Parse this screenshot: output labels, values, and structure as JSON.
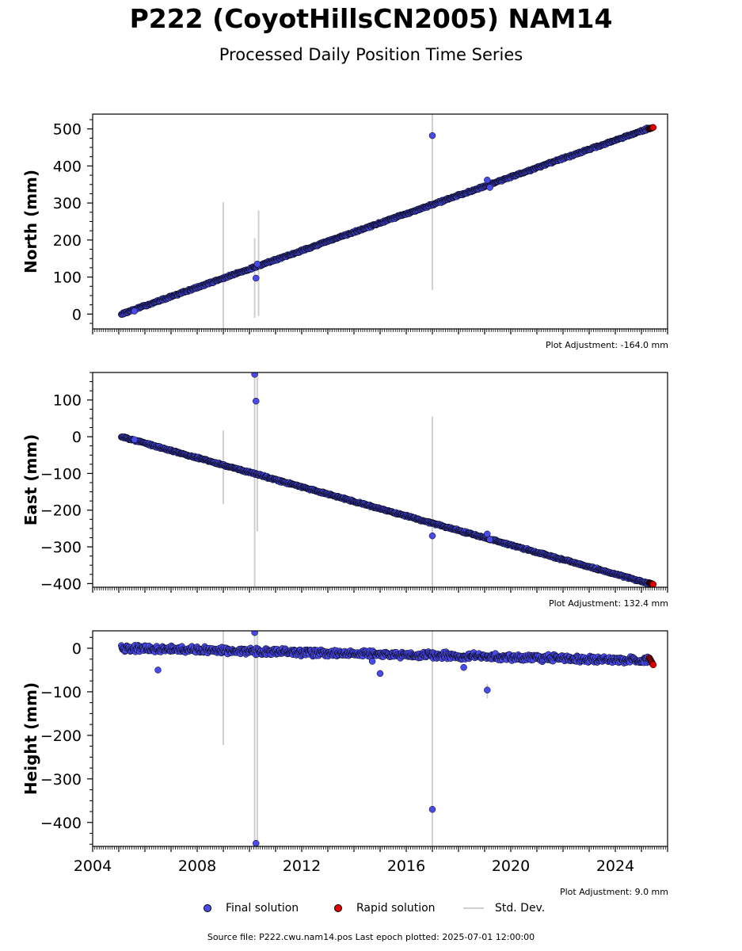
{
  "header": {
    "title": "P222 (CoyotHillsCN2005) NAM14",
    "subtitle": "Processed Daily Position Time Series"
  },
  "adjustments": {
    "north": "Plot Adjustment: -164.0 mm",
    "east": "Plot Adjustment: 132.4 mm",
    "height": "Plot Adjustment: 9.0 mm"
  },
  "legend": {
    "final": "Final solution",
    "rapid": "Rapid solution",
    "std": "Std. Dev."
  },
  "footer": "Source file: P222.cwu.nam14.pos  Last epoch plotted: 2025-07-01 12:00:00",
  "colors": {
    "final": "#4a4ae8",
    "rapid": "#e00000",
    "std_dev": "#cfcfcf",
    "marker_edge": "#000000"
  },
  "chart_data": [
    {
      "type": "scatter",
      "ylabel": "North (mm)",
      "xlim": [
        2004.0,
        2026.0
      ],
      "ylim": [
        -40,
        540
      ],
      "yticks": [
        0,
        100,
        200,
        300,
        400,
        500
      ],
      "grid": false,
      "trend": {
        "x": [
          2005.1,
          2025.3
        ],
        "y": [
          0,
          502
        ],
        "jitter": 3
      },
      "outliers": [
        {
          "x": 2005.6,
          "y": 8
        },
        {
          "x": 2010.25,
          "y": 97
        },
        {
          "x": 2010.3,
          "y": 135
        },
        {
          "x": 2017.0,
          "y": 482
        },
        {
          "x": 2019.1,
          "y": 362
        },
        {
          "x": 2019.2,
          "y": 342
        }
      ],
      "error_bars": [
        {
          "x": 2009.0,
          "ylo": -40,
          "yhi": 302
        },
        {
          "x": 2010.2,
          "ylo": -10,
          "yhi": 205
        },
        {
          "x": 2010.35,
          "ylo": -5,
          "yhi": 280
        },
        {
          "x": 2017.0,
          "ylo": 65,
          "yhi": 540
        }
      ],
      "rapid": {
        "x": [
          2025.3,
          2025.45
        ],
        "y": [
          500,
          504
        ]
      }
    },
    {
      "type": "scatter",
      "ylabel": "East (mm)",
      "xlim": [
        2004.0,
        2026.0
      ],
      "ylim": [
        -410,
        175
      ],
      "yticks": [
        -400,
        -300,
        -200,
        -100,
        0,
        100
      ],
      "grid": false,
      "trend": {
        "x": [
          2005.1,
          2025.3
        ],
        "y": [
          0,
          -400
        ],
        "jitter": 3
      },
      "outliers": [
        {
          "x": 2005.6,
          "y": -8
        },
        {
          "x": 2010.2,
          "y": 170
        },
        {
          "x": 2010.25,
          "y": 97
        },
        {
          "x": 2017.0,
          "y": -270
        },
        {
          "x": 2019.1,
          "y": -265
        },
        {
          "x": 2019.2,
          "y": -280
        }
      ],
      "error_bars": [
        {
          "x": 2009.0,
          "ylo": -183,
          "yhi": 17
        },
        {
          "x": 2010.2,
          "ylo": -410,
          "yhi": 175
        },
        {
          "x": 2010.3,
          "ylo": -258,
          "yhi": 175
        },
        {
          "x": 2017.0,
          "ylo": -410,
          "yhi": 55
        }
      ],
      "rapid": {
        "x": [
          2025.3,
          2025.45
        ],
        "y": [
          -398,
          -402
        ]
      }
    },
    {
      "type": "scatter",
      "xlabel": "",
      "ylabel": "Height (mm)",
      "xlim": [
        2004.0,
        2026.0
      ],
      "ylim": [
        -455,
        40
      ],
      "yticks": [
        -400,
        -300,
        -200,
        -100,
        0
      ],
      "xticks": [
        2004,
        2008,
        2012,
        2016,
        2020,
        2024
      ],
      "grid": false,
      "trend": {
        "x": [
          2005.1,
          2025.3
        ],
        "y": [
          0,
          -28
        ],
        "jitter": 9
      },
      "outliers": [
        {
          "x": 2006.5,
          "y": -50
        },
        {
          "x": 2010.2,
          "y": 36
        },
        {
          "x": 2010.25,
          "y": -448
        },
        {
          "x": 2014.7,
          "y": -30
        },
        {
          "x": 2015.0,
          "y": -58
        },
        {
          "x": 2017.0,
          "y": -370
        },
        {
          "x": 2018.2,
          "y": -44
        },
        {
          "x": 2019.1,
          "y": -96
        }
      ],
      "error_bars": [
        {
          "x": 2009.0,
          "ylo": -222,
          "yhi": 40
        },
        {
          "x": 2010.2,
          "ylo": -455,
          "yhi": 40
        },
        {
          "x": 2010.3,
          "ylo": -455,
          "yhi": 40
        },
        {
          "x": 2017.0,
          "ylo": -455,
          "yhi": 40
        },
        {
          "x": 2019.1,
          "ylo": -115,
          "yhi": -82
        }
      ],
      "rapid": {
        "x": [
          2025.3,
          2025.45
        ],
        "y": [
          -22,
          -38
        ]
      }
    }
  ]
}
